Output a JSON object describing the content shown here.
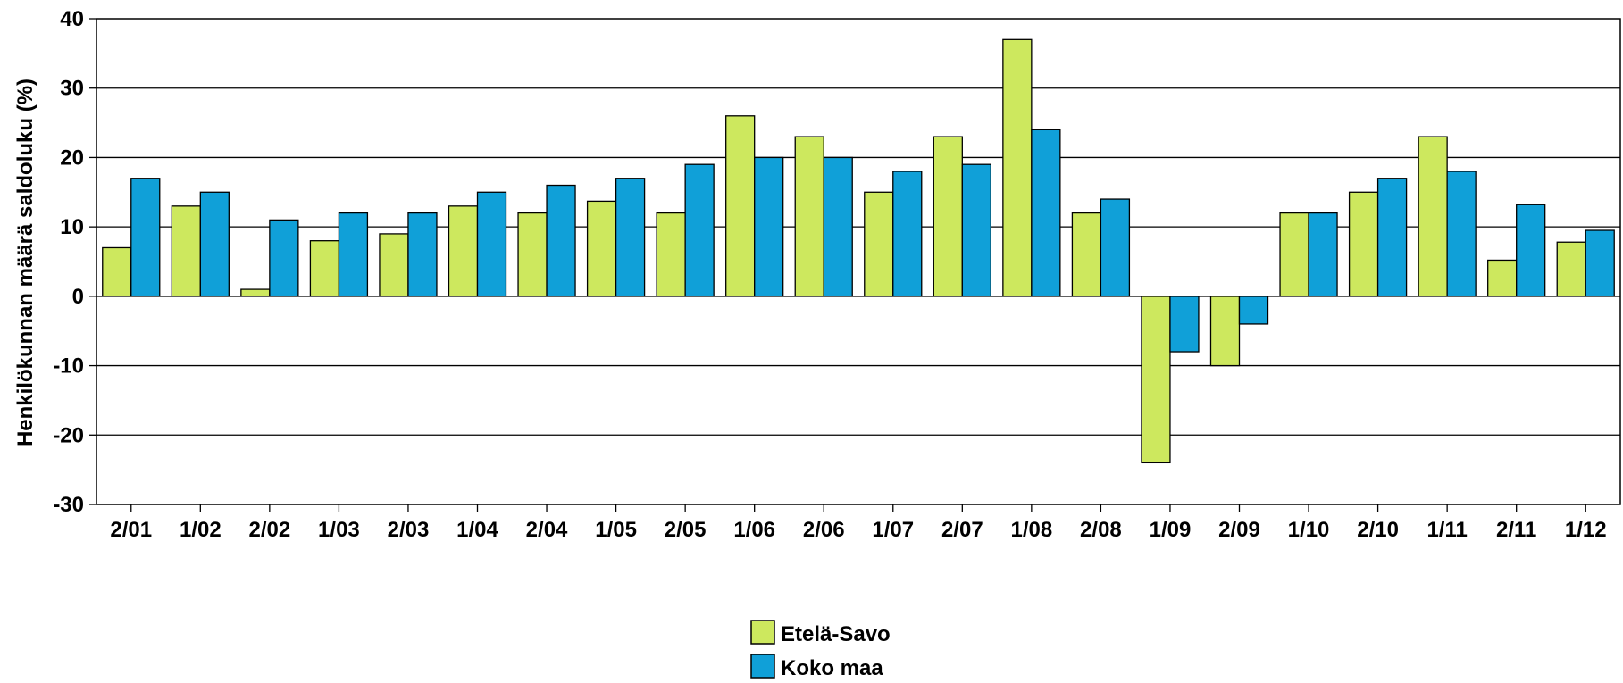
{
  "chart_data": {
    "type": "bar",
    "title": "",
    "xlabel": "",
    "ylabel": "Henkilökunnan määrä saldoluku (%)",
    "ylim": [
      -30,
      40
    ],
    "yticks": [
      40,
      30,
      20,
      10,
      0,
      -10,
      -20,
      -30
    ],
    "ytick_labels": [
      "40",
      "30",
      "20",
      "10",
      "0",
      "-10",
      "-20",
      "-30"
    ],
    "grid": true,
    "legend_position": "bottom-center",
    "categories": [
      "2/01",
      "1/02",
      "2/02",
      "1/03",
      "2/03",
      "1/04",
      "2/04",
      "1/05",
      "2/05",
      "1/06",
      "2/06",
      "1/07",
      "2/07",
      "1/08",
      "2/08",
      "1/09",
      "2/09",
      "1/10",
      "2/10",
      "1/11",
      "2/11",
      "1/12"
    ],
    "series": [
      {
        "name": "Etelä-Savo",
        "color": "#cde85e",
        "values": [
          7,
          13,
          1,
          8,
          9,
          13,
          12,
          13.7,
          12,
          26,
          23,
          15,
          23,
          37,
          12,
          -24,
          -10,
          12,
          15,
          23,
          5.2,
          7.8
        ]
      },
      {
        "name": "Koko maa",
        "color": "#10a0d8",
        "values": [
          17,
          15,
          11,
          12,
          12,
          15,
          16,
          17,
          19,
          20,
          20,
          18,
          19,
          24,
          14,
          -8,
          -4,
          12,
          17,
          18,
          13.2,
          9.5
        ]
      }
    ]
  }
}
